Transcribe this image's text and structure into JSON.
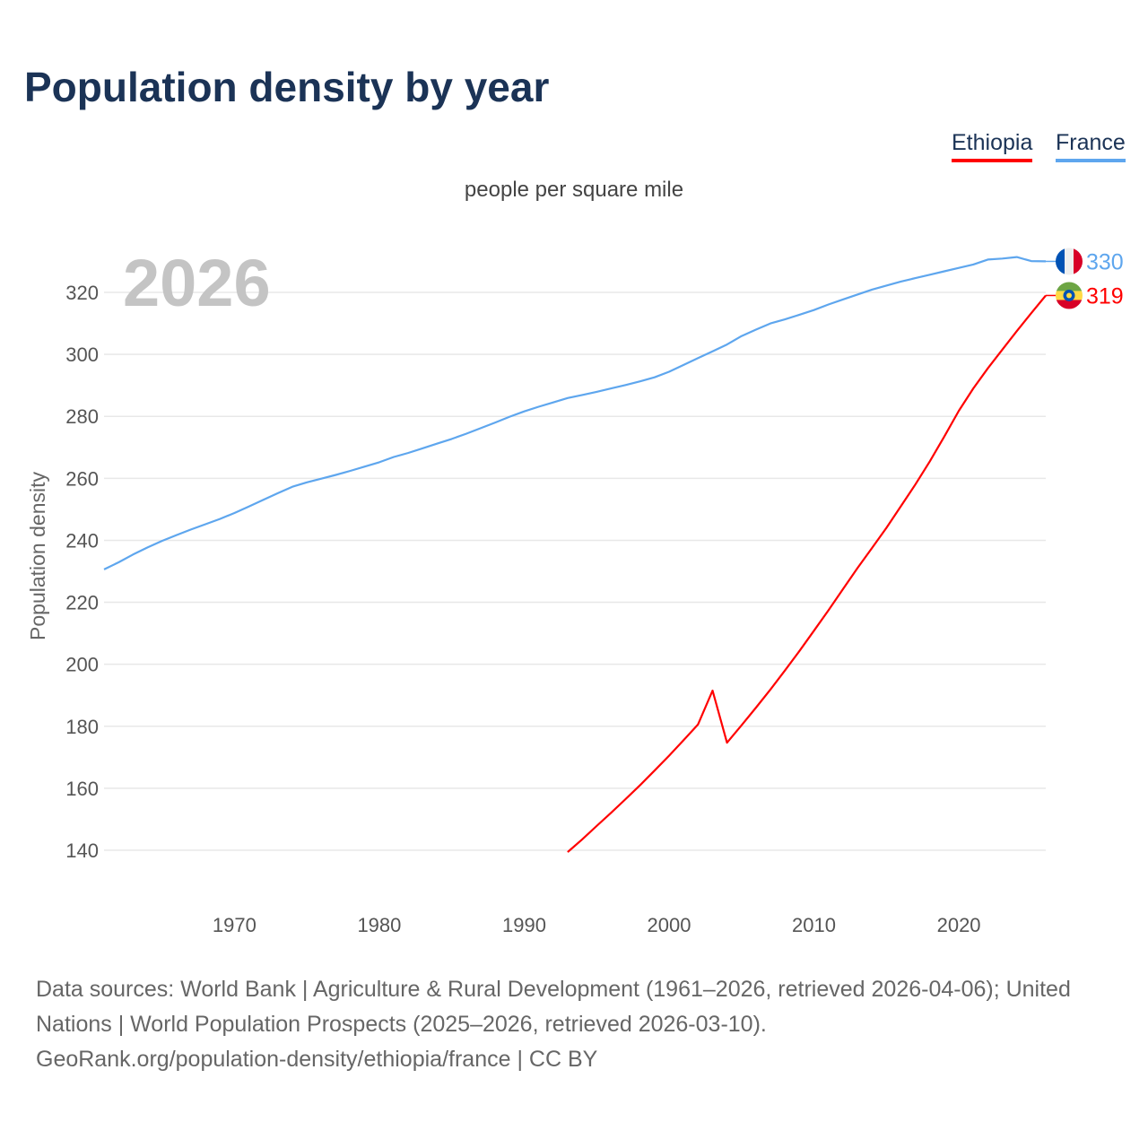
{
  "title": "Population density by year",
  "legend": [
    {
      "label": "Ethiopia",
      "color": "#ff0000"
    },
    {
      "label": "France",
      "color": "#5ea6ee"
    }
  ],
  "footer": {
    "sources": "Data sources: World Bank | Agriculture & Rural Development (1961–2026, retrieved 2026-04-06); United Nations | World Population Prospects (2025–2026, retrieved 2026-03-10).",
    "link": "GeoRank.org/population-density/ethiopia/france | CC BY"
  },
  "chart_data": {
    "type": "line",
    "title": "Population density by year",
    "subtitle": "people per square mile",
    "ylabel": "Population density",
    "xlabel": "",
    "year_watermark": "2026",
    "xlim": [
      1961,
      2026
    ],
    "ylim": [
      127,
      333
    ],
    "xticks": [
      1970,
      1980,
      1990,
      2000,
      2010,
      2020
    ],
    "yticks": [
      140,
      160,
      180,
      200,
      220,
      240,
      260,
      280,
      300,
      320
    ],
    "grid": true,
    "legend_position": "top-right",
    "series": [
      {
        "name": "France",
        "color": "#5ea6ee",
        "end_label": "330",
        "x": [
          1961,
          1962,
          1963,
          1964,
          1965,
          1966,
          1967,
          1968,
          1969,
          1970,
          1971,
          1972,
          1973,
          1974,
          1975,
          1976,
          1977,
          1978,
          1979,
          1980,
          1981,
          1982,
          1983,
          1984,
          1985,
          1986,
          1987,
          1988,
          1989,
          1990,
          1991,
          1992,
          1993,
          1994,
          1995,
          1996,
          1997,
          1998,
          1999,
          2000,
          2001,
          2002,
          2003,
          2004,
          2005,
          2006,
          2007,
          2008,
          2009,
          2010,
          2011,
          2012,
          2013,
          2014,
          2015,
          2016,
          2017,
          2018,
          2019,
          2020,
          2021,
          2022,
          2023,
          2024,
          2025,
          2026
        ],
        "y": [
          230.6,
          232.9,
          235.4,
          237.7,
          239.8,
          241.7,
          243.5,
          245.2,
          246.9,
          248.8,
          250.9,
          253.1,
          255.2,
          257.3,
          258.7,
          259.9,
          261.1,
          262.4,
          263.8,
          265.2,
          266.9,
          268.2,
          269.7,
          271.2,
          272.7,
          274.4,
          276.2,
          278,
          279.9,
          281.6,
          283.1,
          284.5,
          285.9,
          286.9,
          287.9,
          289,
          290.1,
          291.3,
          292.6,
          294.4,
          296.6,
          298.8,
          301,
          303.2,
          305.9,
          308,
          310,
          311.3,
          312.8,
          314.3,
          316.1,
          317.7,
          319.3,
          320.9,
          322.2,
          323.5,
          324.6,
          325.7,
          326.8,
          327.9,
          329,
          330.6,
          330.9,
          331.4,
          330.1,
          330
        ]
      },
      {
        "name": "Ethiopia",
        "color": "#ff0000",
        "end_label": "319",
        "x": [
          1993,
          1994,
          1995,
          1996,
          1997,
          1998,
          1999,
          2000,
          2001,
          2002,
          2003,
          2004,
          2005,
          2006,
          2007,
          2008,
          2009,
          2010,
          2011,
          2012,
          2013,
          2014,
          2015,
          2016,
          2017,
          2018,
          2019,
          2020,
          2021,
          2022,
          2023,
          2024,
          2025,
          2026
        ],
        "y": [
          139.4,
          143.5,
          147.8,
          152.1,
          156.5,
          161,
          165.7,
          170.5,
          175.5,
          180.6,
          191.5,
          174.7,
          180.3,
          186,
          191.9,
          198,
          204.3,
          210.8,
          217.4,
          224.2,
          231,
          237.5,
          244,
          251,
          258,
          265.5,
          273.5,
          281.8,
          289,
          295.5,
          301.5,
          307.5,
          313.3,
          319
        ]
      }
    ]
  }
}
